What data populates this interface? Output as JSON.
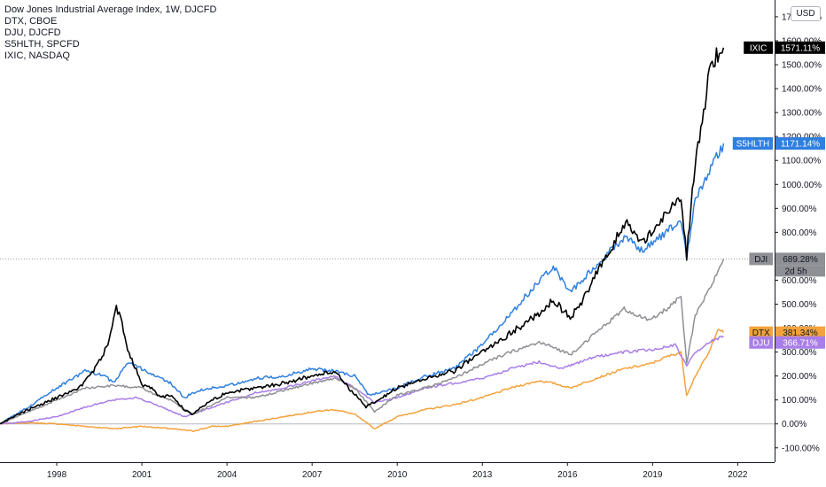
{
  "legend": {
    "title": "Dow Jones Industrial Average Index, 1W, DJCFD",
    "items": [
      "DTX, CBOE",
      "DJU, DJCFD",
      "S5HLTH, SPCFD",
      "IXIC, NASDAQ"
    ]
  },
  "currency_badge": "USD",
  "colors": {
    "IXIC": "#000000",
    "S5HLTH": "#2f7fe0",
    "DJI": "#8e9095",
    "DTX": "#f4a23b",
    "DJU": "#a97ee8",
    "zero_line": "#b5b8bf",
    "axis": "#131722"
  },
  "chart_data": {
    "type": "line",
    "xlabel": "",
    "ylabel": "",
    "y_unit": "%",
    "x_range": [
      1996.0,
      2023.3
    ],
    "ylim": [
      -160,
      1770
    ],
    "x_ticks": [
      "1998",
      "2001",
      "2004",
      "2007",
      "2010",
      "2013",
      "2016",
      "2019",
      "2022"
    ],
    "y_ticks": [
      "-100.00%",
      "0.00%",
      "100.00%",
      "200.00%",
      "300.00%",
      "400.00%",
      "500.00%",
      "600.00%",
      "700.00%",
      "800.00%",
      "900.00%",
      "1000.00%",
      "1100.00%",
      "1200.00%",
      "1300.00%",
      "1400.00%",
      "1500.00%",
      "1600.00%",
      "1700.00%"
    ],
    "series": [
      {
        "name": "IXIC",
        "last_label": "1571.11%",
        "x": [
          1996.0,
          1997.0,
          1998.0,
          1998.7,
          1999.3,
          1999.8,
          2000.1,
          2000.3,
          2000.5,
          2000.8,
          2001.0,
          2001.3,
          2001.7,
          2002.0,
          2002.5,
          2002.8,
          2003.3,
          2004.0,
          2005.0,
          2006.0,
          2007.0,
          2007.8,
          2008.3,
          2008.9,
          2009.2,
          2010.0,
          2011.0,
          2012.0,
          2013.0,
          2014.0,
          2015.0,
          2015.5,
          2016.1,
          2016.5,
          2017.0,
          2017.5,
          2018.0,
          2018.7,
          2019.0,
          2019.5,
          2020.0,
          2020.2,
          2020.5,
          2020.8,
          2021.0,
          2021.3,
          2021.5
        ],
        "values": [
          0,
          60,
          110,
          140,
          220,
          330,
          490,
          420,
          300,
          230,
          160,
          150,
          110,
          120,
          60,
          40,
          90,
          130,
          150,
          170,
          200,
          220,
          150,
          70,
          90,
          150,
          190,
          220,
          300,
          380,
          460,
          520,
          440,
          510,
          620,
          720,
          840,
          760,
          800,
          880,
          960,
          700,
          1100,
          1300,
          1480,
          1540,
          1571
        ]
      },
      {
        "name": "S5HLTH",
        "last_label": "1171.14%",
        "x": [
          1996.0,
          1997.0,
          1998.0,
          1999.0,
          1999.7,
          2000.0,
          2000.5,
          2001.0,
          2001.5,
          2002.0,
          2002.5,
          2003.0,
          2004.0,
          2005.0,
          2006.0,
          2007.0,
          2007.8,
          2008.5,
          2009.0,
          2010.0,
          2011.0,
          2012.0,
          2013.0,
          2014.0,
          2015.0,
          2015.5,
          2016.1,
          2017.0,
          2018.0,
          2018.7,
          2019.0,
          2019.5,
          2020.0,
          2020.2,
          2020.5,
          2021.0,
          2021.5
        ],
        "values": [
          0,
          70,
          150,
          220,
          200,
          170,
          260,
          230,
          200,
          170,
          110,
          140,
          160,
          190,
          200,
          230,
          220,
          200,
          120,
          150,
          200,
          230,
          330,
          460,
          600,
          660,
          550,
          660,
          780,
          720,
          760,
          800,
          860,
          700,
          940,
          1050,
          1171
        ]
      },
      {
        "name": "DJI",
        "last_label": "689.28%",
        "x": [
          1996.0,
          1997.0,
          1998.0,
          1999.0,
          2000.0,
          2001.0,
          2001.5,
          2002.0,
          2002.8,
          2003.5,
          2004.0,
          2005.0,
          2006.0,
          2007.0,
          2007.8,
          2008.5,
          2009.2,
          2010.0,
          2011.0,
          2012.0,
          2013.0,
          2014.0,
          2015.0,
          2015.5,
          2016.1,
          2017.0,
          2018.0,
          2018.9,
          2019.5,
          2020.0,
          2020.2,
          2020.5,
          2021.0,
          2021.5
        ],
        "values": [
          0,
          50,
          100,
          150,
          160,
          150,
          120,
          100,
          40,
          80,
          110,
          110,
          140,
          170,
          190,
          150,
          50,
          120,
          150,
          190,
          250,
          300,
          340,
          320,
          290,
          380,
          480,
          430,
          480,
          530,
          250,
          450,
          560,
          689
        ]
      },
      {
        "name": "DTX",
        "last_label": "381.34%",
        "x": [
          1996.0,
          1997.0,
          1998.0,
          1999.0,
          2000.0,
          2001.0,
          2002.0,
          2002.8,
          2003.5,
          2004.0,
          2005.0,
          2006.0,
          2007.0,
          2007.8,
          2008.5,
          2009.2,
          2010.0,
          2011.0,
          2012.0,
          2013.0,
          2014.0,
          2015.0,
          2015.5,
          2016.1,
          2017.0,
          2018.0,
          2018.9,
          2019.5,
          2020.0,
          2020.2,
          2020.5,
          2021.0,
          2021.3,
          2021.5
        ],
        "values": [
          0,
          5,
          0,
          -10,
          -20,
          -10,
          -20,
          -30,
          -10,
          -10,
          10,
          30,
          50,
          60,
          40,
          -20,
          30,
          60,
          80,
          110,
          150,
          180,
          170,
          150,
          190,
          230,
          250,
          280,
          300,
          120,
          200,
          300,
          400,
          381
        ]
      },
      {
        "name": "DJU",
        "last_label": "366.71%",
        "x": [
          1996.0,
          1997.0,
          1998.0,
          1999.0,
          2000.0,
          2000.8,
          2001.5,
          2002.5,
          2003.0,
          2004.0,
          2005.0,
          2006.0,
          2007.0,
          2007.8,
          2008.5,
          2009.2,
          2010.0,
          2011.0,
          2012.0,
          2013.0,
          2014.0,
          2015.0,
          2015.8,
          2016.5,
          2017.0,
          2018.0,
          2019.0,
          2019.8,
          2020.2,
          2020.5,
          2021.0,
          2021.5
        ],
        "values": [
          0,
          10,
          30,
          70,
          100,
          110,
          80,
          30,
          50,
          90,
          130,
          150,
          180,
          200,
          150,
          90,
          110,
          150,
          170,
          190,
          230,
          260,
          230,
          260,
          280,
          300,
          310,
          330,
          240,
          300,
          340,
          367
        ]
      }
    ]
  },
  "price_tags": {
    "IXIC": {
      "name": "IXIC",
      "value": "1571.11%"
    },
    "S5HLTH": {
      "name": "S5HLTH",
      "value": "1171.14%"
    },
    "DJI": {
      "name": "DJI",
      "value": "689.28%",
      "countdown": "2d 5h"
    },
    "DTX": {
      "name": "DTX",
      "value": "381.34%"
    },
    "DJU": {
      "name": "DJU",
      "value": "366.71%"
    }
  }
}
